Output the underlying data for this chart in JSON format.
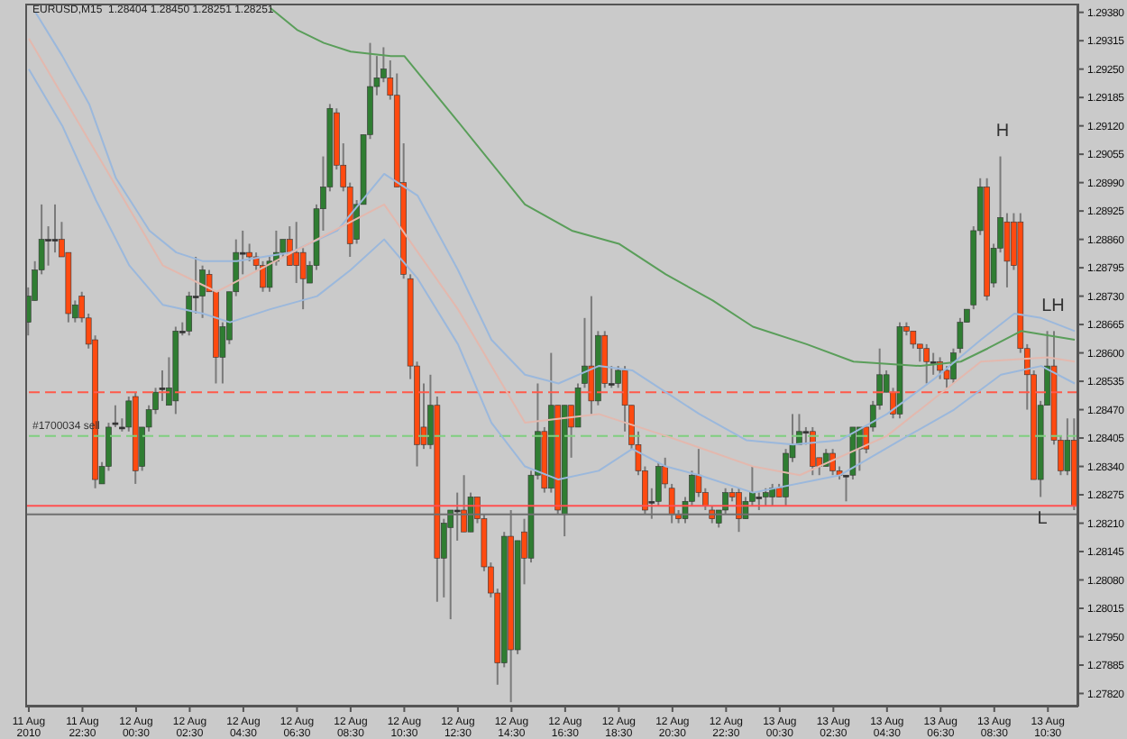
{
  "chart_data": {
    "type": "candlestick",
    "title": "EURUSD,M15  1.28404 1.28450 1.28251 1.28251",
    "x": [
      "2010-08-11T20:30",
      "2010-08-11T20:45",
      "2010-08-11T21:00",
      "2010-08-11T21:15",
      "2010-08-11T21:30",
      "2010-08-11T21:45",
      "2010-08-11T22:00",
      "2010-08-11T22:15",
      "2010-08-11T22:30",
      "2010-08-11T22:45",
      "2010-08-11T23:00",
      "2010-08-11T23:15",
      "2010-08-11T23:30",
      "2010-08-11T23:45",
      "2010-08-12T00:00",
      "2010-08-12T00:15",
      "2010-08-12T00:30",
      "2010-08-12T00:45",
      "2010-08-12T01:00",
      "2010-08-12T01:15",
      "2010-08-12T01:30",
      "2010-08-12T01:45",
      "2010-08-12T02:00",
      "2010-08-12T02:15",
      "2010-08-12T02:30",
      "2010-08-12T02:45",
      "2010-08-12T03:00",
      "2010-08-12T03:15",
      "2010-08-12T03:30",
      "2010-08-12T03:45",
      "2010-08-12T04:00",
      "2010-08-12T04:15",
      "2010-08-12T04:30",
      "2010-08-12T04:45",
      "2010-08-12T05:00",
      "2010-08-12T05:15",
      "2010-08-12T05:30",
      "2010-08-12T05:45",
      "2010-08-12T06:00",
      "2010-08-12T06:15",
      "2010-08-12T06:30",
      "2010-08-12T06:45",
      "2010-08-12T07:00",
      "2010-08-12T07:15",
      "2010-08-12T07:30",
      "2010-08-12T07:45",
      "2010-08-12T08:00",
      "2010-08-12T08:15",
      "2010-08-12T08:30",
      "2010-08-12T08:45",
      "2010-08-12T09:00",
      "2010-08-12T09:15",
      "2010-08-12T09:30",
      "2010-08-12T09:45",
      "2010-08-12T10:00",
      "2010-08-12T10:15",
      "2010-08-12T10:30",
      "2010-08-12T10:45",
      "2010-08-12T11:00",
      "2010-08-12T11:15",
      "2010-08-12T11:30",
      "2010-08-12T11:45",
      "2010-08-12T12:00",
      "2010-08-12T12:15",
      "2010-08-12T12:30",
      "2010-08-12T12:45",
      "2010-08-12T13:00",
      "2010-08-12T13:15",
      "2010-08-12T13:30",
      "2010-08-12T13:45",
      "2010-08-12T14:00",
      "2010-08-12T14:15",
      "2010-08-12T14:30",
      "2010-08-12T14:45",
      "2010-08-12T15:00",
      "2010-08-12T15:15",
      "2010-08-12T15:30",
      "2010-08-12T15:45",
      "2010-08-12T16:00",
      "2010-08-12T16:15",
      "2010-08-12T16:30",
      "2010-08-12T16:45",
      "2010-08-12T17:00",
      "2010-08-12T17:15",
      "2010-08-12T17:30",
      "2010-08-12T17:45",
      "2010-08-12T18:00",
      "2010-08-12T18:15",
      "2010-08-12T18:30",
      "2010-08-12T18:45",
      "2010-08-12T19:00",
      "2010-08-12T19:15",
      "2010-08-12T19:30",
      "2010-08-12T19:45",
      "2010-08-12T20:00",
      "2010-08-12T20:15",
      "2010-08-12T20:30",
      "2010-08-12T20:45",
      "2010-08-12T21:00",
      "2010-08-12T21:15",
      "2010-08-12T21:30",
      "2010-08-12T21:45",
      "2010-08-12T22:00",
      "2010-08-12T22:15",
      "2010-08-12T22:30",
      "2010-08-12T22:45",
      "2010-08-12T23:00",
      "2010-08-12T23:15",
      "2010-08-12T23:30",
      "2010-08-12T23:45",
      "2010-08-13T00:00",
      "2010-08-13T00:15",
      "2010-08-13T00:30",
      "2010-08-13T00:45",
      "2010-08-13T01:00",
      "2010-08-13T01:15",
      "2010-08-13T01:30",
      "2010-08-13T01:45",
      "2010-08-13T02:00",
      "2010-08-13T02:15",
      "2010-08-13T02:30",
      "2010-08-13T02:45",
      "2010-08-13T03:00",
      "2010-08-13T03:15",
      "2010-08-13T03:30",
      "2010-08-13T03:45",
      "2010-08-13T04:00",
      "2010-08-13T04:15",
      "2010-08-13T04:30",
      "2010-08-13T04:45",
      "2010-08-13T05:00",
      "2010-08-13T05:15",
      "2010-08-13T05:30",
      "2010-08-13T05:45",
      "2010-08-13T06:00",
      "2010-08-13T06:15",
      "2010-08-13T06:30",
      "2010-08-13T06:45",
      "2010-08-13T07:00",
      "2010-08-13T07:15",
      "2010-08-13T07:30",
      "2010-08-13T07:45",
      "2010-08-13T08:00",
      "2010-08-13T08:15",
      "2010-08-13T08:30",
      "2010-08-13T08:45",
      "2010-08-13T09:00",
      "2010-08-13T09:15",
      "2010-08-13T09:30",
      "2010-08-13T09:45",
      "2010-08-13T10:00",
      "2010-08-13T10:15",
      "2010-08-13T10:30",
      "2010-08-13T10:45",
      "2010-08-13T11:00",
      "2010-08-13T11:15",
      "2010-08-13T11:30"
    ],
    "ohlc": [
      [
        1.2867,
        1.2875,
        1.2864,
        1.2873
      ],
      [
        1.2872,
        1.2881,
        1.2872,
        1.2879
      ],
      [
        1.2879,
        1.2894,
        1.2878,
        1.2886
      ],
      [
        1.2886,
        1.2889,
        1.288,
        1.2886
      ],
      [
        1.2886,
        1.2894,
        1.2883,
        1.2886
      ],
      [
        1.2886,
        1.289,
        1.2882,
        1.2882
      ],
      [
        1.2883,
        1.2883,
        1.2867,
        1.2869
      ],
      [
        1.2868,
        1.2872,
        1.2867,
        1.2871
      ],
      [
        1.2873,
        1.2874,
        1.2867,
        1.2868
      ],
      [
        1.2868,
        1.2869,
        1.2861,
        1.2862
      ],
      [
        1.2863,
        1.2864,
        1.2829,
        1.2831
      ],
      [
        1.283,
        1.2835,
        1.283,
        1.2834
      ],
      [
        1.2834,
        1.2844,
        1.2833,
        1.2843
      ],
      [
        1.2844,
        1.2848,
        1.2843,
        1.2844
      ],
      [
        1.2843,
        1.2845,
        1.2842,
        1.2843
      ],
      [
        1.2843,
        1.285,
        1.2842,
        1.2849
      ],
      [
        1.285,
        1.2851,
        1.283,
        1.2833
      ],
      [
        1.2834,
        1.2843,
        1.2833,
        1.2843
      ],
      [
        1.2843,
        1.2848,
        1.2842,
        1.2847
      ],
      [
        1.2847,
        1.2852,
        1.2846,
        1.2851
      ],
      [
        1.2852,
        1.2856,
        1.2849,
        1.2852
      ],
      [
        1.2848,
        1.2859,
        1.2848,
        1.2852
      ],
      [
        1.2849,
        1.2866,
        1.2846,
        1.2865
      ],
      [
        1.2865,
        1.2867,
        1.2864,
        1.2865
      ],
      [
        1.2865,
        1.2874,
        1.2864,
        1.2873
      ],
      [
        1.2873,
        1.2882,
        1.2869,
        1.2873
      ],
      [
        1.2873,
        1.288,
        1.2868,
        1.2879
      ],
      [
        1.2878,
        1.2879,
        1.2874,
        1.2874
      ],
      [
        1.2874,
        1.2874,
        1.2853,
        1.2859
      ],
      [
        1.2859,
        1.2867,
        1.2853,
        1.2866
      ],
      [
        1.2863,
        1.2874,
        1.2862,
        1.2874
      ],
      [
        1.2874,
        1.2886,
        1.2873,
        1.2883
      ],
      [
        1.2883,
        1.2888,
        1.2878,
        1.2883
      ],
      [
        1.2883,
        1.2885,
        1.2881,
        1.2882
      ],
      [
        1.2882,
        1.2883,
        1.2879,
        1.288
      ],
      [
        1.288,
        1.2881,
        1.2874,
        1.2875
      ],
      [
        1.2875,
        1.2882,
        1.2874,
        1.2881
      ],
      [
        1.2881,
        1.2888,
        1.288,
        1.2883
      ],
      [
        1.2883,
        1.2886,
        1.2882,
        1.2886
      ],
      [
        1.2886,
        1.2889,
        1.288,
        1.288
      ],
      [
        1.2883,
        1.289,
        1.2876,
        1.288
      ],
      [
        1.2883,
        1.2884,
        1.287,
        1.2877
      ],
      [
        1.2876,
        1.2881,
        1.2876,
        1.288
      ],
      [
        1.288,
        1.2894,
        1.2879,
        1.2893
      ],
      [
        1.2893,
        1.2905,
        1.2888,
        1.2898
      ],
      [
        1.2898,
        1.2917,
        1.2897,
        1.2916
      ],
      [
        1.2915,
        1.2916,
        1.2902,
        1.2903
      ],
      [
        1.2903,
        1.2908,
        1.2897,
        1.2898
      ],
      [
        1.2898,
        1.2899,
        1.2882,
        1.2885
      ],
      [
        1.2886,
        1.2895,
        1.2885,
        1.2894
      ],
      [
        1.2894,
        1.291,
        1.2894,
        1.291
      ],
      [
        1.291,
        1.2931,
        1.2909,
        1.2921
      ],
      [
        1.2921,
        1.2928,
        1.2919,
        1.2923
      ],
      [
        1.2923,
        1.293,
        1.2922,
        1.2925
      ],
      [
        1.2923,
        1.2927,
        1.2918,
        1.2919
      ],
      [
        1.2919,
        1.2924,
        1.2898,
        1.2898
      ],
      [
        1.2899,
        1.2908,
        1.2877,
        1.2878
      ],
      [
        1.2877,
        1.2878,
        1.2854,
        1.2857
      ],
      [
        1.2857,
        1.2858,
        1.2834,
        1.2839
      ],
      [
        1.2843,
        1.2853,
        1.2838,
        1.2839
      ],
      [
        1.2839,
        1.2855,
        1.2838,
        1.2848
      ],
      [
        1.2848,
        1.285,
        1.2803,
        1.2813
      ],
      [
        1.2813,
        1.2822,
        1.2804,
        1.2821
      ],
      [
        1.282,
        1.2824,
        1.2799,
        1.2824
      ],
      [
        1.2824,
        1.2828,
        1.2817,
        1.2824
      ],
      [
        1.2824,
        1.2832,
        1.2819,
        1.2819
      ],
      [
        1.2819,
        1.2828,
        1.2819,
        1.2827
      ],
      [
        1.2827,
        1.2827,
        1.2821,
        1.2822
      ],
      [
        1.2822,
        1.2823,
        1.281,
        1.2811
      ],
      [
        1.2811,
        1.2812,
        1.2804,
        1.2805
      ],
      [
        1.2805,
        1.2806,
        1.2784,
        1.2789
      ],
      [
        1.2789,
        1.2819,
        1.2788,
        1.2818
      ],
      [
        1.2818,
        1.2824,
        1.278,
        1.2792
      ],
      [
        1.2792,
        1.2817,
        1.2791,
        1.2817
      ],
      [
        1.2819,
        1.2822,
        1.2807,
        1.2813
      ],
      [
        1.2813,
        1.2833,
        1.2812,
        1.2832
      ],
      [
        1.2832,
        1.2853,
        1.2831,
        1.2842
      ],
      [
        1.2842,
        1.2843,
        1.2828,
        1.2829
      ],
      [
        1.2829,
        1.286,
        1.2828,
        1.2848
      ],
      [
        1.2848,
        1.2848,
        1.2823,
        1.2824
      ],
      [
        1.2823,
        1.2848,
        1.2818,
        1.2848
      ],
      [
        1.2848,
        1.2848,
        1.2836,
        1.2843
      ],
      [
        1.2843,
        1.2853,
        1.2843,
        1.2852
      ],
      [
        1.2853,
        1.2868,
        1.2852,
        1.2857
      ],
      [
        1.2857,
        1.2873,
        1.2846,
        1.2849
      ],
      [
        1.2849,
        1.2865,
        1.2848,
        1.2864
      ],
      [
        1.2864,
        1.2865,
        1.2852,
        1.2853
      ],
      [
        1.2853,
        1.2857,
        1.2852,
        1.2853
      ],
      [
        1.2853,
        1.2857,
        1.2852,
        1.2856
      ],
      [
        1.2856,
        1.2857,
        1.2842,
        1.2848
      ],
      [
        1.2848,
        1.2848,
        1.2838,
        1.2839
      ],
      [
        1.2839,
        1.2842,
        1.2832,
        1.2833
      ],
      [
        1.2833,
        1.2834,
        1.2823,
        1.2824
      ],
      [
        1.2826,
        1.2829,
        1.2822,
        1.2826
      ],
      [
        1.2826,
        1.2835,
        1.2825,
        1.2834
      ],
      [
        1.2834,
        1.2836,
        1.2829,
        1.283
      ],
      [
        1.2829,
        1.283,
        1.2821,
        1.2823
      ],
      [
        1.2823,
        1.2824,
        1.2821,
        1.2822
      ],
      [
        1.2822,
        1.2827,
        1.2821,
        1.2826
      ],
      [
        1.2826,
        1.2833,
        1.2825,
        1.2832
      ],
      [
        1.2832,
        1.2838,
        1.2827,
        1.2828
      ],
      [
        1.2828,
        1.2829,
        1.2824,
        1.2825
      ],
      [
        1.2824,
        1.2825,
        1.2821,
        1.2822
      ],
      [
        1.2821,
        1.2824,
        1.282,
        1.2824
      ],
      [
        1.2824,
        1.2829,
        1.2823,
        1.2828
      ],
      [
        1.2828,
        1.2829,
        1.2826,
        1.2827
      ],
      [
        1.2828,
        1.2829,
        1.2819,
        1.2822
      ],
      [
        1.2822,
        1.2827,
        1.2822,
        1.2826
      ],
      [
        1.2826,
        1.2834,
        1.2825,
        1.2828
      ],
      [
        1.2827,
        1.2828,
        1.2824,
        1.2827
      ],
      [
        1.2827,
        1.2829,
        1.2825,
        1.2828
      ],
      [
        1.2827,
        1.283,
        1.2825,
        1.2829
      ],
      [
        1.2829,
        1.283,
        1.2827,
        1.2827
      ],
      [
        1.2827,
        1.2838,
        1.2825,
        1.2837
      ],
      [
        1.2836,
        1.2846,
        1.2835,
        1.2839
      ],
      [
        1.2839,
        1.2846,
        1.2839,
        1.2842
      ],
      [
        1.2842,
        1.2843,
        1.2839,
        1.2842
      ],
      [
        1.2842,
        1.2843,
        1.2832,
        1.2834
      ],
      [
        1.2836,
        1.2836,
        1.2832,
        1.2834
      ],
      [
        1.2834,
        1.2838,
        1.2834,
        1.2837
      ],
      [
        1.2837,
        1.2838,
        1.2832,
        1.2833
      ],
      [
        1.2833,
        1.2834,
        1.2831,
        1.2832
      ],
      [
        1.2832,
        1.2832,
        1.2826,
        1.2832
      ],
      [
        1.2832,
        1.2843,
        1.2831,
        1.2843
      ],
      [
        1.2838,
        1.2843,
        1.2833,
        1.2843
      ],
      [
        1.2843,
        1.2843,
        1.2837,
        1.2838
      ],
      [
        1.2843,
        1.2849,
        1.2842,
        1.2848
      ],
      [
        1.2848,
        1.2861,
        1.2847,
        1.2855
      ],
      [
        1.2851,
        1.2856,
        1.2851,
        1.2855
      ],
      [
        1.2851,
        1.2852,
        1.2845,
        1.2846
      ],
      [
        1.2846,
        1.2867,
        1.2845,
        1.2866
      ],
      [
        1.2866,
        1.2867,
        1.2864,
        1.2865
      ],
      [
        1.2865,
        1.2865,
        1.2861,
        1.2862
      ],
      [
        1.2862,
        1.2862,
        1.2858,
        1.2861
      ],
      [
        1.2861,
        1.2862,
        1.2853,
        1.2858
      ],
      [
        1.2858,
        1.286,
        1.2855,
        1.2858
      ],
      [
        1.2858,
        1.2859,
        1.2854,
        1.2856
      ],
      [
        1.2856,
        1.2857,
        1.2852,
        1.2854
      ],
      [
        1.2854,
        1.2861,
        1.2853,
        1.286
      ],
      [
        1.2861,
        1.2868,
        1.286,
        1.2867
      ],
      [
        1.2867,
        1.287,
        1.2867,
        1.287
      ],
      [
        1.2871,
        1.2889,
        1.287,
        1.2888
      ],
      [
        1.2888,
        1.29,
        1.2887,
        1.2898
      ],
      [
        1.2898,
        1.29,
        1.2872,
        1.2873
      ],
      [
        1.2876,
        1.2885,
        1.2875,
        1.2884
      ],
      [
        1.2884,
        1.2905,
        1.2883,
        1.2891
      ],
      [
        1.289,
        1.2892,
        1.2875,
        1.2881
      ],
      [
        1.289,
        1.2892,
        1.2879,
        1.288
      ],
      [
        1.289,
        1.2892,
        1.286,
        1.2861
      ],
      [
        1.2861,
        1.2862,
        1.2847,
        1.2855
      ],
      [
        1.2855,
        1.2856,
        1.2831,
        1.2831
      ],
      [
        1.2831,
        1.2849,
        1.2827,
        1.2848
      ],
      [
        1.2848,
        1.2865,
        1.2848,
        1.2857
      ],
      [
        1.2857,
        1.2865,
        1.2839,
        1.284
      ],
      [
        1.284,
        1.2841,
        1.2832,
        1.2833
      ],
      [
        1.2833,
        1.2845,
        1.2832,
        1.284
      ],
      [
        1.284,
        1.2845,
        1.2824,
        1.2825
      ]
    ],
    "series": [
      {
        "type": "line",
        "color": "#5a9e5a",
        "x": [
          "2010-08-12T05:30",
          "2010-08-12T06:30",
          "2010-08-12T07:30",
          "2010-08-12T08:30",
          "2010-08-12T10:00",
          "2010-08-12T10:30",
          "2010-08-12T12:30",
          "2010-08-12T15:00",
          "2010-08-12T16:45",
          "2010-08-12T18:30",
          "2010-08-12T20:15",
          "2010-08-12T22:00",
          "2010-08-12T23:30",
          "2010-08-13T01:30",
          "2010-08-13T03:15",
          "2010-08-13T05:45",
          "2010-08-13T07:15",
          "2010-08-13T08:15",
          "2010-08-13T09:30",
          "2010-08-13T11:30"
        ],
        "values": [
          1.2939,
          1.2934,
          1.2931,
          1.2929,
          1.2928,
          1.2928,
          1.2913,
          1.2894,
          1.2888,
          1.2885,
          1.2878,
          1.2872,
          1.2866,
          1.2862,
          1.2858,
          1.2857,
          1.2858,
          1.2861,
          1.2865,
          1.2863
        ]
      },
      {
        "type": "line",
        "color": "#9bb8dc",
        "x": [
          "2010-08-11T20:45",
          "2010-08-11T21:45",
          "2010-08-11T22:45",
          "2010-08-11T23:45",
          "2010-08-12T01:00",
          "2010-08-12T02:00",
          "2010-08-12T03:00",
          "2010-08-12T04:15",
          "2010-08-12T06:15",
          "2010-08-12T08:00",
          "2010-08-12T09:45",
          "2010-08-12T11:00",
          "2010-08-12T12:30",
          "2010-08-12T13:45",
          "2010-08-12T15:00",
          "2010-08-12T16:15",
          "2010-08-12T17:45",
          "2010-08-12T19:00",
          "2010-08-12T20:15",
          "2010-08-12T21:30",
          "2010-08-12T23:15",
          "2010-08-13T01:00",
          "2010-08-13T02:45",
          "2010-08-13T04:30",
          "2010-08-13T06:15",
          "2010-08-13T08:00",
          "2010-08-13T09:15",
          "2010-08-13T10:15",
          "2010-08-13T11:30"
        ],
        "values": [
          1.2938,
          1.2928,
          1.2917,
          1.29,
          1.2888,
          1.2883,
          1.2881,
          1.2881,
          1.2883,
          1.2888,
          1.2901,
          1.2896,
          1.2879,
          1.2863,
          1.2855,
          1.2853,
          1.2857,
          1.2856,
          1.2851,
          1.2846,
          1.284,
          1.2839,
          1.284,
          1.2846,
          1.2854,
          1.2863,
          1.2869,
          1.2868,
          1.2865
        ]
      },
      {
        "type": "line",
        "color": "#9bb8dc",
        "x": [
          "2010-08-11T20:30",
          "2010-08-11T21:45",
          "2010-08-11T23:00",
          "2010-08-12T00:15",
          "2010-08-12T01:30",
          "2010-08-12T03:00",
          "2010-08-12T04:00",
          "2010-08-12T05:30",
          "2010-08-12T07:15",
          "2010-08-12T08:30",
          "2010-08-12T09:45",
          "2010-08-12T11:00",
          "2010-08-12T12:30",
          "2010-08-12T13:45",
          "2010-08-12T15:00",
          "2010-08-12T16:15",
          "2010-08-12T17:45",
          "2010-08-12T19:00",
          "2010-08-12T20:15",
          "2010-08-12T21:30",
          "2010-08-12T23:30",
          "2010-08-13T02:45",
          "2010-08-13T05:00",
          "2010-08-13T07:00",
          "2010-08-13T08:45",
          "2010-08-13T10:15",
          "2010-08-13T11:30"
        ],
        "values": [
          1.2925,
          1.2912,
          1.2895,
          1.288,
          1.2871,
          1.2869,
          1.2867,
          1.287,
          1.2873,
          1.2879,
          1.2886,
          1.2877,
          1.2862,
          1.2844,
          1.2834,
          1.2831,
          1.2833,
          1.2838,
          1.2834,
          1.2832,
          1.2828,
          1.2832,
          1.284,
          1.2847,
          1.2855,
          1.2857,
          1.2853
        ]
      },
      {
        "type": "line",
        "color": "#e3b8ae",
        "x": [
          "2010-08-11T20:30",
          "2010-08-11T23:00",
          "2010-08-12T01:30",
          "2010-08-12T03:30",
          "2010-08-12T09:45",
          "2010-08-12T12:30",
          "2010-08-12T15:00",
          "2010-08-12T17:45",
          "2010-08-12T20:15",
          "2010-08-12T23:30",
          "2010-08-13T01:15",
          "2010-08-13T04:30",
          "2010-08-13T08:00",
          "2010-08-13T10:30",
          "2010-08-13T11:30"
        ],
        "values": [
          1.2932,
          1.2906,
          1.288,
          1.2874,
          1.2894,
          1.287,
          1.2844,
          1.2846,
          1.2841,
          1.2834,
          1.2832,
          1.2841,
          1.2858,
          1.2859,
          1.2858
        ]
      }
    ],
    "xlim": [
      "2010-08-11T20:22",
      "2010-08-13T11:38"
    ],
    "xticks": [
      {
        "value": "2010-08-11T20:30",
        "label": "11 Aug 2010"
      },
      {
        "value": "2010-08-11T22:30",
        "label": "11 Aug 22:30"
      },
      {
        "value": "2010-08-12T00:30",
        "label": "12 Aug 00:30"
      },
      {
        "value": "2010-08-12T02:30",
        "label": "12 Aug 02:30"
      },
      {
        "value": "2010-08-12T04:30",
        "label": "12 Aug 04:30"
      },
      {
        "value": "2010-08-12T06:30",
        "label": "12 Aug 06:30"
      },
      {
        "value": "2010-08-12T08:30",
        "label": "12 Aug 08:30"
      },
      {
        "value": "2010-08-12T10:30",
        "label": "12 Aug 10:30"
      },
      {
        "value": "2010-08-12T12:30",
        "label": "12 Aug 12:30"
      },
      {
        "value": "2010-08-12T14:30",
        "label": "12 Aug 14:30"
      },
      {
        "value": "2010-08-12T16:30",
        "label": "12 Aug 16:30"
      },
      {
        "value": "2010-08-12T18:30",
        "label": "12 Aug 18:30"
      },
      {
        "value": "2010-08-12T20:30",
        "label": "12 Aug 20:30"
      },
      {
        "value": "2010-08-12T22:30",
        "label": "12 Aug 22:30"
      },
      {
        "value": "2010-08-13T00:30",
        "label": "13 Aug 00:30"
      },
      {
        "value": "2010-08-13T02:30",
        "label": "13 Aug 02:30"
      },
      {
        "value": "2010-08-13T04:30",
        "label": "13 Aug 04:30"
      },
      {
        "value": "2010-08-13T06:30",
        "label": "13 Aug 06:30"
      },
      {
        "value": "2010-08-13T08:30",
        "label": "13 Aug 08:30"
      },
      {
        "value": "2010-08-13T10:30",
        "label": "13 Aug 10:30"
      }
    ],
    "ylim": [
      1.2779,
      1.294
    ],
    "yticks": [
      {
        "value": 1.2938,
        "label": "1.29380"
      },
      {
        "value": 1.29315,
        "label": "1.29315"
      },
      {
        "value": 1.2925,
        "label": "1.29250"
      },
      {
        "value": 1.29185,
        "label": "1.29185"
      },
      {
        "value": 1.2912,
        "label": "1.29120"
      },
      {
        "value": 1.29055,
        "label": "1.29055"
      },
      {
        "value": 1.2899,
        "label": "1.28990"
      },
      {
        "value": 1.28925,
        "label": "1.28925"
      },
      {
        "value": 1.2886,
        "label": "1.28860"
      },
      {
        "value": 1.28795,
        "label": "1.28795"
      },
      {
        "value": 1.2873,
        "label": "1.28730"
      },
      {
        "value": 1.28665,
        "label": "1.28665"
      },
      {
        "value": 1.286,
        "label": "1.28600"
      },
      {
        "value": 1.28535,
        "label": "1.28535"
      },
      {
        "value": 1.2847,
        "label": "1.28470"
      },
      {
        "value": 1.28405,
        "label": "1.28405"
      },
      {
        "value": 1.2834,
        "label": "1.28340"
      },
      {
        "value": 1.28275,
        "label": "1.28275"
      },
      {
        "value": 1.2821,
        "label": "1.28210"
      },
      {
        "value": 1.28145,
        "label": "1.28145"
      },
      {
        "value": 1.2808,
        "label": "1.28080"
      },
      {
        "value": 1.28015,
        "label": "1.28015"
      },
      {
        "value": 1.2795,
        "label": "1.27950"
      },
      {
        "value": 1.27885,
        "label": "1.27885"
      },
      {
        "value": 1.2782,
        "label": "1.27820"
      }
    ],
    "ref_lines": [
      {
        "axis": "y",
        "value": 1.2851,
        "color": "#ff5a4a",
        "line_style": "dashed"
      },
      {
        "axis": "y",
        "value": 1.2841,
        "label": "#1700034 sell",
        "color": "#7fcf7f",
        "line_style": "dashed"
      },
      {
        "axis": "y",
        "value": 1.2825,
        "color": "#ff5050",
        "line_style": "solid"
      },
      {
        "axis": "y",
        "value": 1.2823,
        "color": "#707070",
        "line_style": "solid"
      }
    ],
    "annotations": [
      "H",
      "LH",
      "L"
    ],
    "grid": false,
    "legend": false
  }
}
